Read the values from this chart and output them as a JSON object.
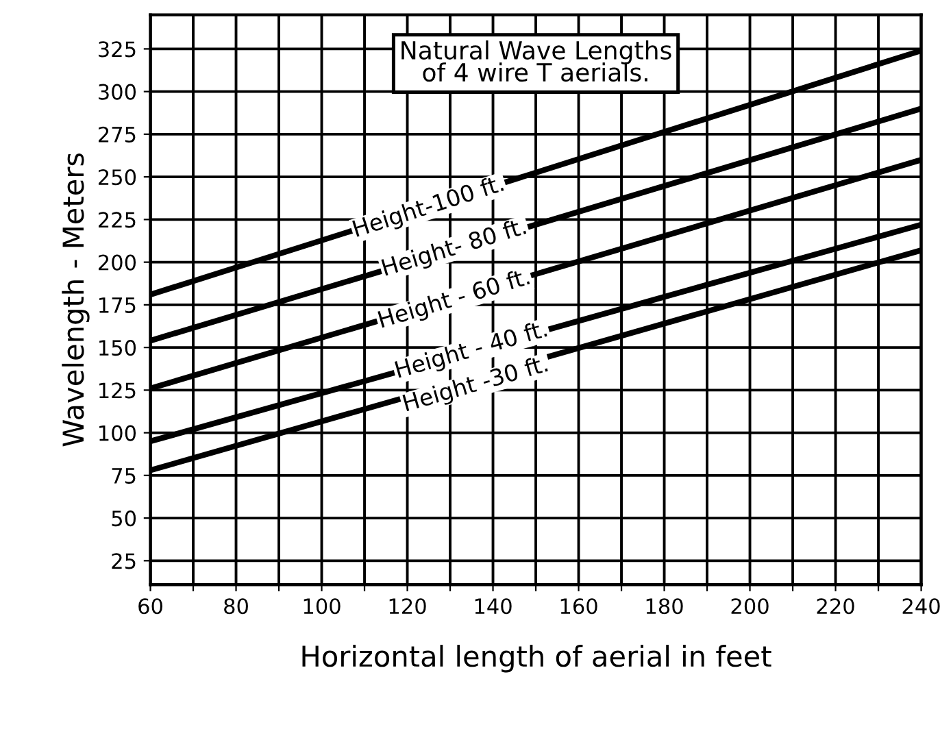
{
  "chart_data": {
    "type": "line",
    "title": "Natural Wave Lengths\nof 4 wire T aerials.",
    "xlabel": "Horizontal length of aerial in feet",
    "ylabel": "Wavelength - Meters",
    "x": [
      60,
      240
    ],
    "series": [
      {
        "color": "#000000",
        "values": [
          181,
          324
        ]
      },
      {
        "color": "#000000",
        "values": [
          154,
          290
        ]
      },
      {
        "color": "#000000",
        "values": [
          126,
          260
        ]
      },
      {
        "color": "#000000",
        "values": [
          95,
          222
        ]
      },
      {
        "color": "#000000",
        "values": [
          78,
          207
        ]
      }
    ],
    "annotations": [
      {
        "text": "Height-100 ft.",
        "x": 125,
        "y": 232
      },
      {
        "text": "Height- 80 ft.",
        "x": 131,
        "y": 208
      },
      {
        "text": "Height - 60 ft.",
        "x": 131,
        "y": 178
      },
      {
        "text": "Height - 40 ft.",
        "x": 135,
        "y": 148
      },
      {
        "text": "Height -30 ft.",
        "x": 136,
        "y": 128
      }
    ],
    "xlim": [
      60,
      240
    ],
    "ylim": [
      11,
      345
    ],
    "xticks": [
      60,
      {
        "value": 70,
        "label": null
      },
      80,
      {
        "value": 90,
        "label": null
      },
      100,
      {
        "value": 110,
        "label": null
      },
      120,
      {
        "value": 130,
        "label": null
      },
      140,
      {
        "value": 150,
        "label": null
      },
      160,
      {
        "value": 170,
        "label": null
      },
      180,
      {
        "value": 190,
        "label": null
      },
      200,
      {
        "value": 210,
        "label": null
      },
      220,
      {
        "value": 230,
        "label": null
      },
      240
    ],
    "yticks": [
      25,
      50,
      75,
      100,
      125,
      150,
      175,
      200,
      225,
      250,
      275,
      300,
      325
    ],
    "grid": true,
    "line_style": "solid",
    "marker": "none",
    "legend": false
  }
}
